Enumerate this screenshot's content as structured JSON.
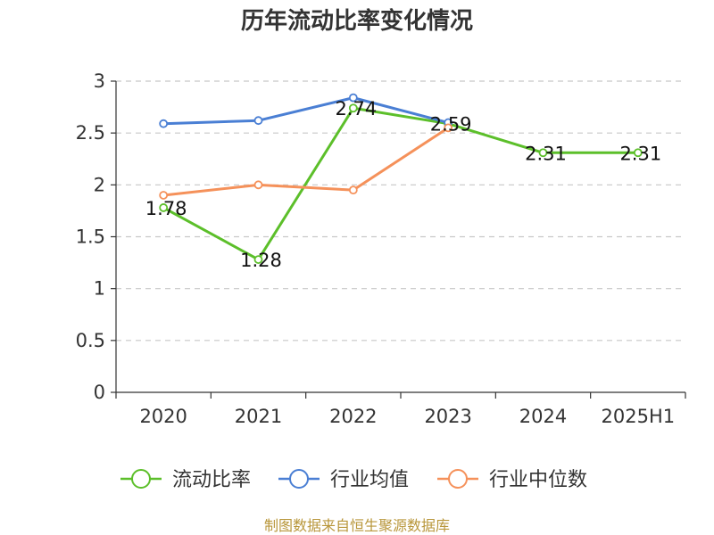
{
  "chart_data": {
    "type": "line",
    "title": "历年流动比率变化情况",
    "categories": [
      "2020",
      "2021",
      "2022",
      "2023",
      "2024",
      "2025H1"
    ],
    "ylim": [
      0,
      3
    ],
    "yticks": [
      "0",
      "0.5",
      "1",
      "1.5",
      "2",
      "2.5",
      "3"
    ],
    "grid": true,
    "legend_position": "bottom",
    "series": [
      {
        "name": "流动比率",
        "color": "#5cbf2a",
        "values": [
          1.78,
          1.28,
          2.74,
          2.59,
          2.31,
          2.31
        ],
        "labels": [
          "1.78",
          "1.28",
          "2.74",
          "2.59",
          "2.31",
          "2.31"
        ]
      },
      {
        "name": "行业均值",
        "color": "#4a7fd4",
        "values": [
          2.59,
          2.62,
          2.84,
          2.6,
          null,
          null
        ]
      },
      {
        "name": "行业中位数",
        "color": "#f5915a",
        "values": [
          1.9,
          2.0,
          1.95,
          2.55,
          null,
          null
        ]
      }
    ],
    "source": "制图数据来自恒生聚源数据库"
  }
}
